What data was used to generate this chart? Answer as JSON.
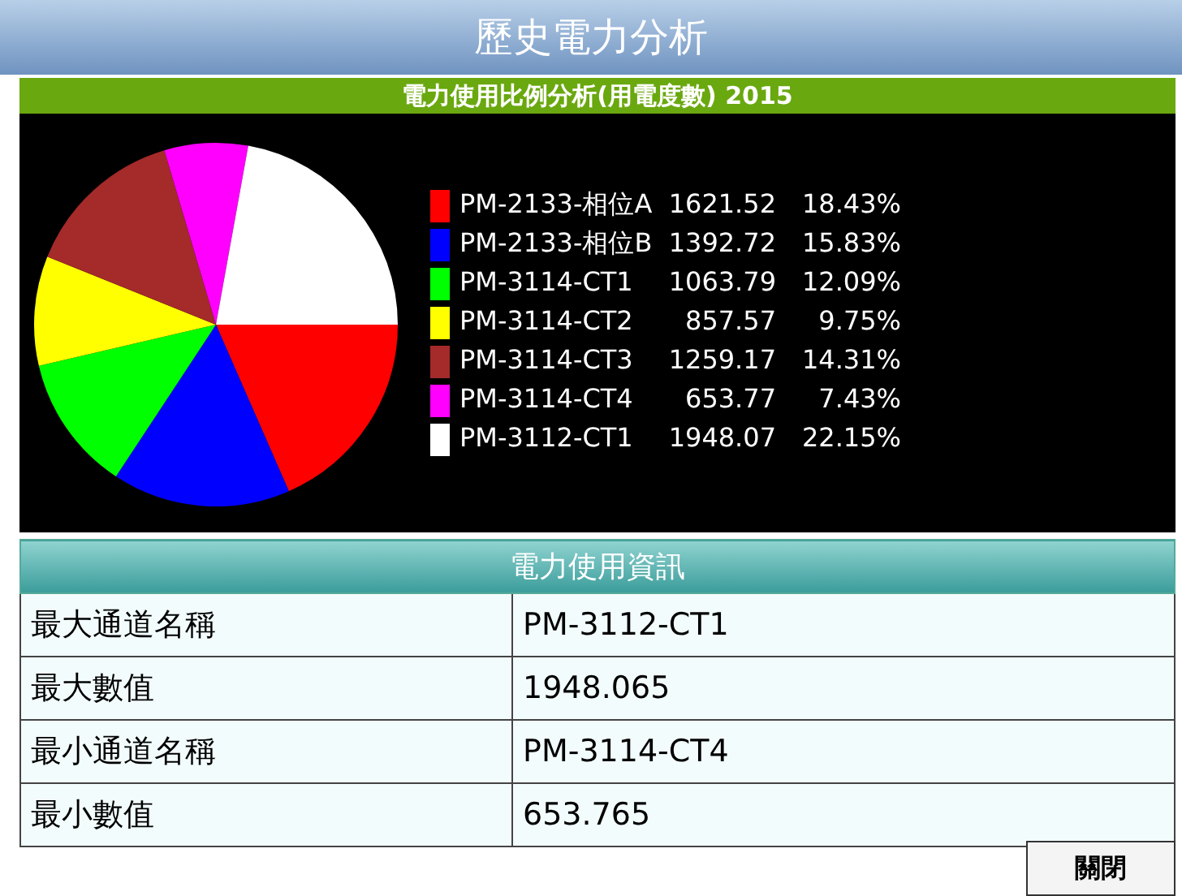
{
  "chart_data": {
    "type": "pie",
    "title": "歷史電力分析",
    "subtitle": "電力使用比例分析(用電度數) 2015",
    "categories": [
      "PM-2133-相位A",
      "PM-2133-相位B",
      "PM-3114-CT1",
      "PM-3114-CT2",
      "PM-3114-CT3",
      "PM-3114-CT4",
      "PM-3112-CT1"
    ],
    "values": [
      18.43,
      15.83,
      12.09,
      9.75,
      14.31,
      7.43,
      22.15
    ],
    "value_labels": [
      "1621.52 18.43%",
      "1392.72 15.83%",
      "1063.79 12.09%",
      "857.57 9.75%",
      "1259.17 14.31%",
      "653.77 7.43%",
      "1948.07 22.15%"
    ],
    "colors": [
      "#ff0000",
      "#0000ff",
      "#00ff00",
      "#ffff00",
      "#a52a2a",
      "#ff00ff",
      "#ffffff"
    ],
    "legend": "right",
    "annotations": [
      "電力使用資訊",
      "最大通道名稱",
      "PM-3112-CT1",
      "最大數值",
      "1948.065",
      "最小通道名稱",
      "PM-3114-CT4",
      "最小數值",
      "653.765",
      "關閉"
    ]
  }
}
